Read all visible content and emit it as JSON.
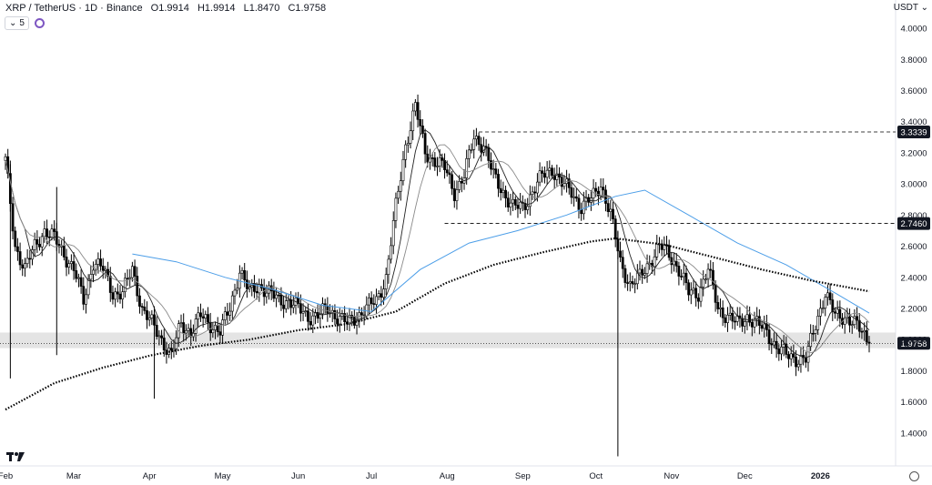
{
  "header": {
    "symbol": "XRP / TetherUS · 1D · Binance",
    "open_label": "O",
    "open": "1.9914",
    "high_label": "H",
    "high": "1.9914",
    "low_label": "L",
    "low": "1.8470",
    "close_label": "C",
    "close": "1.9758"
  },
  "indicator_count": "5",
  "currency": "USDT",
  "colors": {
    "up": "#ffffff",
    "down": "#000000",
    "ma_blue": "#4c9ee8",
    "ma_gray": "#8a8a8a",
    "zone": "#d9d9d9"
  },
  "chart_data": {
    "type": "candlestick",
    "y_range": [
      1.2,
      4.1
    ],
    "y_ticks": [
      "4.0000",
      "3.8000",
      "3.6000",
      "3.4000",
      "3.2000",
      "3.0000",
      "2.8000",
      "2.6000",
      "2.4000",
      "2.2000",
      "2.0000",
      "1.8000",
      "1.6000",
      "1.4000"
    ],
    "x_labels": [
      "Feb",
      "Mar",
      "Apr",
      "May",
      "Jun",
      "Jul",
      "Aug",
      "Sep",
      "Oct",
      "Nov",
      "Dec",
      "2026"
    ],
    "x_label_days": [
      0,
      28,
      59,
      89,
      120,
      150,
      181,
      212,
      242,
      273,
      303,
      334
    ],
    "last_day": 354,
    "price_series": [
      [
        0,
        3.15
      ],
      [
        4,
        2.6
      ],
      [
        8,
        2.45
      ],
      [
        12,
        2.6
      ],
      [
        16,
        2.7
      ],
      [
        20,
        2.65
      ],
      [
        24,
        2.55
      ],
      [
        28,
        2.45
      ],
      [
        32,
        2.25
      ],
      [
        36,
        2.5
      ],
      [
        40,
        2.45
      ],
      [
        44,
        2.3
      ],
      [
        48,
        2.3
      ],
      [
        52,
        2.45
      ],
      [
        56,
        2.2
      ],
      [
        60,
        2.1
      ],
      [
        64,
        2.0
      ],
      [
        68,
        1.9
      ],
      [
        72,
        2.1
      ],
      [
        76,
        2.05
      ],
      [
        80,
        2.15
      ],
      [
        84,
        2.1
      ],
      [
        88,
        2.05
      ],
      [
        92,
        2.2
      ],
      [
        96,
        2.45
      ],
      [
        100,
        2.3
      ],
      [
        104,
        2.35
      ],
      [
        108,
        2.3
      ],
      [
        112,
        2.25
      ],
      [
        116,
        2.25
      ],
      [
        120,
        2.2
      ],
      [
        124,
        2.15
      ],
      [
        128,
        2.15
      ],
      [
        132,
        2.2
      ],
      [
        136,
        2.15
      ],
      [
        140,
        2.1
      ],
      [
        144,
        2.15
      ],
      [
        148,
        2.2
      ],
      [
        152,
        2.25
      ],
      [
        156,
        2.4
      ],
      [
        160,
        2.85
      ],
      [
        164,
        3.25
      ],
      [
        168,
        3.5
      ],
      [
        172,
        3.2
      ],
      [
        176,
        3.15
      ],
      [
        180,
        3.1
      ],
      [
        184,
        2.95
      ],
      [
        188,
        3.05
      ],
      [
        192,
        3.3
      ],
      [
        196,
        3.25
      ],
      [
        200,
        3.05
      ],
      [
        204,
        2.95
      ],
      [
        208,
        2.85
      ],
      [
        212,
        2.85
      ],
      [
        216,
        2.95
      ],
      [
        220,
        3.05
      ],
      [
        224,
        3.1
      ],
      [
        228,
        3.0
      ],
      [
        232,
        2.95
      ],
      [
        236,
        2.85
      ],
      [
        240,
        2.9
      ],
      [
        244,
        3.0
      ],
      [
        248,
        2.8
      ],
      [
        252,
        2.5
      ],
      [
        256,
        2.35
      ],
      [
        260,
        2.4
      ],
      [
        264,
        2.5
      ],
      [
        268,
        2.6
      ],
      [
        272,
        2.55
      ],
      [
        276,
        2.45
      ],
      [
        280,
        2.3
      ],
      [
        284,
        2.3
      ],
      [
        288,
        2.45
      ],
      [
        292,
        2.2
      ],
      [
        296,
        2.15
      ],
      [
        300,
        2.1
      ],
      [
        304,
        2.15
      ],
      [
        308,
        2.1
      ],
      [
        312,
        2.05
      ],
      [
        316,
        1.95
      ],
      [
        320,
        1.9
      ],
      [
        324,
        1.88
      ],
      [
        328,
        1.87
      ],
      [
        332,
        2.1
      ],
      [
        336,
        2.3
      ],
      [
        340,
        2.15
      ],
      [
        344,
        2.15
      ],
      [
        348,
        2.1
      ],
      [
        352,
        2.03
      ],
      [
        354,
        1.98
      ]
    ],
    "spikes": [
      {
        "day": 2,
        "low": 1.75,
        "high": 3.15
      },
      {
        "day": 21,
        "low": 1.9,
        "high": 2.98
      },
      {
        "day": 61,
        "low": 1.62,
        "high": 2.2
      },
      {
        "day": 251,
        "low": 1.25,
        "high": 2.7
      }
    ],
    "ma_blue": [
      [
        52,
        2.55
      ],
      [
        70,
        2.5
      ],
      [
        90,
        2.4
      ],
      [
        110,
        2.32
      ],
      [
        130,
        2.22
      ],
      [
        150,
        2.18
      ],
      [
        170,
        2.45
      ],
      [
        190,
        2.62
      ],
      [
        210,
        2.7
      ],
      [
        230,
        2.8
      ],
      [
        250,
        2.92
      ],
      [
        262,
        2.96
      ],
      [
        280,
        2.8
      ],
      [
        300,
        2.62
      ],
      [
        320,
        2.48
      ],
      [
        340,
        2.3
      ],
      [
        354,
        2.17
      ]
    ],
    "ma_dotted": [
      [
        0,
        1.55
      ],
      [
        20,
        1.72
      ],
      [
        40,
        1.82
      ],
      [
        60,
        1.9
      ],
      [
        80,
        1.96
      ],
      [
        100,
        2.0
      ],
      [
        120,
        2.06
      ],
      [
        140,
        2.1
      ],
      [
        160,
        2.18
      ],
      [
        180,
        2.36
      ],
      [
        200,
        2.48
      ],
      [
        220,
        2.56
      ],
      [
        240,
        2.63
      ],
      [
        250,
        2.65
      ],
      [
        270,
        2.61
      ],
      [
        290,
        2.53
      ],
      [
        310,
        2.45
      ],
      [
        330,
        2.38
      ],
      [
        354,
        2.31
      ]
    ],
    "levels": [
      {
        "value": 3.3339,
        "label": "3.3339",
        "from_day": 194
      },
      {
        "value": 2.746,
        "label": "2.7460",
        "from_day": 180
      }
    ],
    "zone": [
      1.945,
      2.045
    ],
    "last_price": "1.9758",
    "last_price_value": 1.9758
  }
}
